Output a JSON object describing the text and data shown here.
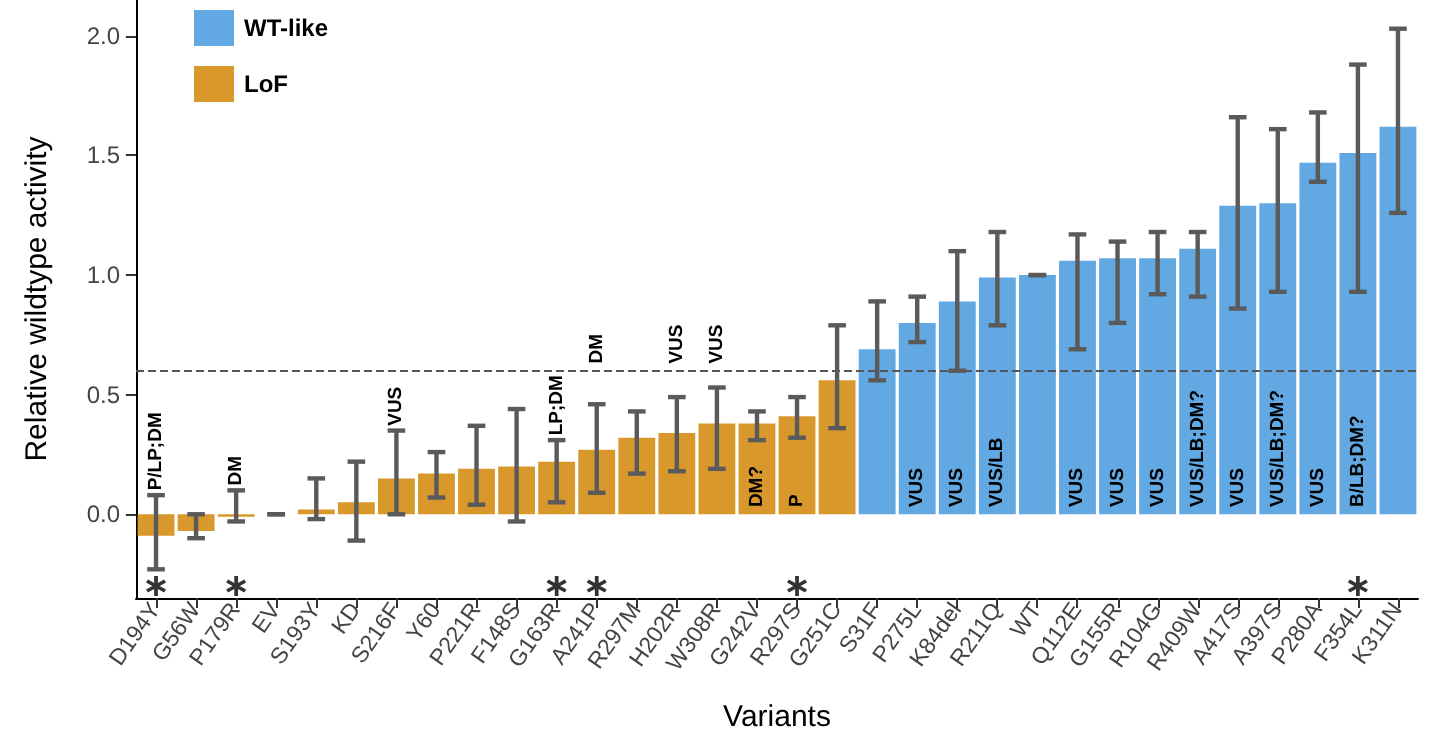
{
  "chart_data": {
    "type": "bar",
    "xlabel": "Variants",
    "ylabel": "Relative wildtype activity",
    "categories": [
      "D194Y",
      "G56W",
      "P179R",
      "EV",
      "S193Y",
      "KD",
      "S216F",
      "Y60",
      "P221R",
      "F148S",
      "G163R",
      "A241P",
      "R297M",
      "H202R",
      "W308R",
      "G242V",
      "R297S",
      "G251C",
      "S31F",
      "P275L",
      "K84del",
      "R211Q",
      "WT",
      "Q112E",
      "G155R",
      "R104G",
      "R409W",
      "A417S",
      "A397S",
      "P280A",
      "F354L",
      "K311N"
    ],
    "series": [
      {
        "name": "WT-like",
        "color": "#62a8e2",
        "values": [
          null,
          null,
          null,
          null,
          null,
          null,
          null,
          null,
          null,
          null,
          null,
          null,
          null,
          null,
          null,
          null,
          null,
          null,
          0.69,
          0.8,
          0.89,
          0.99,
          1.0,
          1.06,
          1.07,
          1.07,
          1.11,
          1.29,
          1.3,
          1.47,
          1.51,
          1.62
        ],
        "errors": [
          null,
          null,
          null,
          null,
          null,
          null,
          null,
          null,
          null,
          null,
          null,
          null,
          null,
          null,
          null,
          null,
          null,
          null,
          [
            0.56,
            0.89
          ],
          [
            0.72,
            0.91
          ],
          [
            0.6,
            1.1
          ],
          [
            0.79,
            1.18
          ],
          [
            1.0,
            1.0
          ],
          [
            0.69,
            1.17
          ],
          [
            0.8,
            1.14
          ],
          [
            0.92,
            1.18
          ],
          [
            0.91,
            1.18
          ],
          [
            0.86,
            1.66
          ],
          [
            0.93,
            1.61
          ],
          [
            1.39,
            1.68
          ],
          [
            0.93,
            1.88
          ],
          [
            1.26,
            2.03
          ]
        ]
      },
      {
        "type": "scatter",
        "color": "#000000",
        "marker": "cross",
        "x": [
          "D194Y",
          "P179R",
          "G163R",
          "A241P",
          "R297S",
          "F354L"
        ],
        "values": [
          -0.3,
          -0.3,
          -0.3,
          -0.3,
          -0.3,
          -0.3
        ]
      },
      {
        "name": "LoF",
        "color": "#d9982b",
        "values": [
          -0.09,
          -0.07,
          -0.01,
          0,
          0.02,
          0.05,
          0.15,
          0.17,
          0.19,
          0.2,
          0.22,
          0.27,
          0.32,
          0.34,
          0.38,
          0.38,
          0.41,
          0.56,
          null,
          null,
          null,
          null,
          null,
          null,
          null,
          null,
          null,
          null,
          null,
          null,
          null,
          null
        ],
        "errors": [
          [
            -0.23,
            0.08
          ],
          [
            -0.1,
            0.0
          ],
          [
            -0.03,
            0.1
          ],
          [
            0,
            0
          ],
          [
            -0.02,
            0.15
          ],
          [
            -0.11,
            0.22
          ],
          [
            0.0,
            0.35
          ],
          [
            0.07,
            0.26
          ],
          [
            0.04,
            0.37
          ],
          [
            -0.03,
            0.44
          ],
          [
            0.05,
            0.31
          ],
          [
            0.09,
            0.46
          ],
          [
            0.17,
            0.43
          ],
          [
            0.18,
            0.49
          ],
          [
            0.19,
            0.53
          ],
          [
            0.31,
            0.43
          ],
          [
            0.32,
            0.49
          ],
          [
            0.36,
            0.79
          ],
          null,
          null,
          null,
          null,
          null,
          null,
          null,
          null,
          null,
          null,
          null,
          null,
          null,
          null
        ]
      }
    ],
    "ylim": [
      -0.35,
      2.15
    ],
    "yticks": [
      {
        "value": 0,
        "label": "0.0"
      },
      0.5,
      {
        "value": 1,
        "label": "1.0"
      },
      1.5,
      {
        "value": 2,
        "label": "2.0"
      }
    ],
    "ref_lines": [
      {
        "axis": "y",
        "value": 0.6,
        "line_style": "dashed",
        "color": "#555555"
      }
    ],
    "annotations": [
      {
        "text": "P/LP;DM",
        "x": "D194Y",
        "y": 0.1
      },
      {
        "text": "DM",
        "x": "P179R",
        "y": 0.12
      },
      {
        "text": "VUS",
        "x": "S216F",
        "y": 0.37
      },
      {
        "text": "LP;DM",
        "x": "G163R",
        "y": 0.33
      },
      {
        "text": "DM",
        "x": "A241P",
        "y": 0.63
      },
      {
        "text": "VUS",
        "x": "H202R",
        "y": 0.63
      },
      {
        "text": "VUS",
        "x": "W308R",
        "y": 0.63
      },
      {
        "text": "DM?",
        "x": "G242V",
        "y": 0.03
      },
      {
        "text": "P",
        "x": "R297S",
        "y": 0.03
      },
      {
        "text": "VUS",
        "x": "P275L",
        "y": 0.03
      },
      {
        "text": "VUS",
        "x": "K84del",
        "y": 0.03
      },
      {
        "text": "VUS/LB",
        "x": "R211Q",
        "y": 0.03
      },
      {
        "text": "VUS",
        "x": "Q112E",
        "y": 0.03
      },
      {
        "text": "VUS",
        "x": "G155R",
        "y": 0.03
      },
      {
        "text": "VUS",
        "x": "R104G",
        "y": 0.03
      },
      {
        "text": "VUS/LB;DM?",
        "x": "R409W",
        "y": 0.03
      },
      {
        "text": "VUS",
        "x": "A417S",
        "y": 0.03
      },
      {
        "text": "VUS/LB;DM?",
        "x": "A397S",
        "y": 0.03
      },
      {
        "text": "VUS",
        "x": "P280A",
        "y": 0.03
      },
      {
        "text": "B/LB;DM?",
        "x": "F354L",
        "y": 0.03
      }
    ],
    "grid": false,
    "legend": "top left"
  }
}
